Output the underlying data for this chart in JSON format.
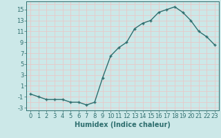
{
  "x": [
    0,
    1,
    2,
    3,
    4,
    5,
    6,
    7,
    8,
    9,
    10,
    11,
    12,
    13,
    14,
    15,
    16,
    17,
    18,
    19,
    20,
    21,
    22,
    23
  ],
  "y": [
    -0.5,
    -1.0,
    -1.5,
    -1.5,
    -1.5,
    -2.0,
    -2.0,
    -2.5,
    -2.0,
    2.5,
    6.5,
    8.0,
    9.0,
    11.5,
    12.5,
    13.0,
    14.5,
    15.0,
    15.5,
    14.5,
    13.0,
    11.0,
    10.0,
    8.5
  ],
  "line_color": "#2e6e6e",
  "marker": "+",
  "marker_color": "#2e6e6e",
  "bg_color": "#cce8e8",
  "grid_color": "#e8c8c8",
  "xlabel": "Humidex (Indice chaleur)",
  "xlim": [
    -0.5,
    23.5
  ],
  "ylim": [
    -3.5,
    16.5
  ],
  "yticks": [
    -3,
    -1,
    1,
    3,
    5,
    7,
    9,
    11,
    13,
    15
  ],
  "ytick_labels": [
    "-3",
    "-1",
    "1",
    "3",
    "5",
    "7",
    "9",
    "11",
    "13",
    "15"
  ],
  "xtick_labels": [
    "0",
    "1",
    "2",
    "3",
    "4",
    "5",
    "6",
    "7",
    "8",
    "9",
    "10",
    "11",
    "12",
    "13",
    "14",
    "15",
    "16",
    "17",
    "18",
    "19",
    "20",
    "21",
    "22",
    "23"
  ],
  "tick_fontsize": 6,
  "xlabel_fontsize": 7,
  "tick_color": "#2e6e6e",
  "xlabel_color": "#2e6e6e"
}
